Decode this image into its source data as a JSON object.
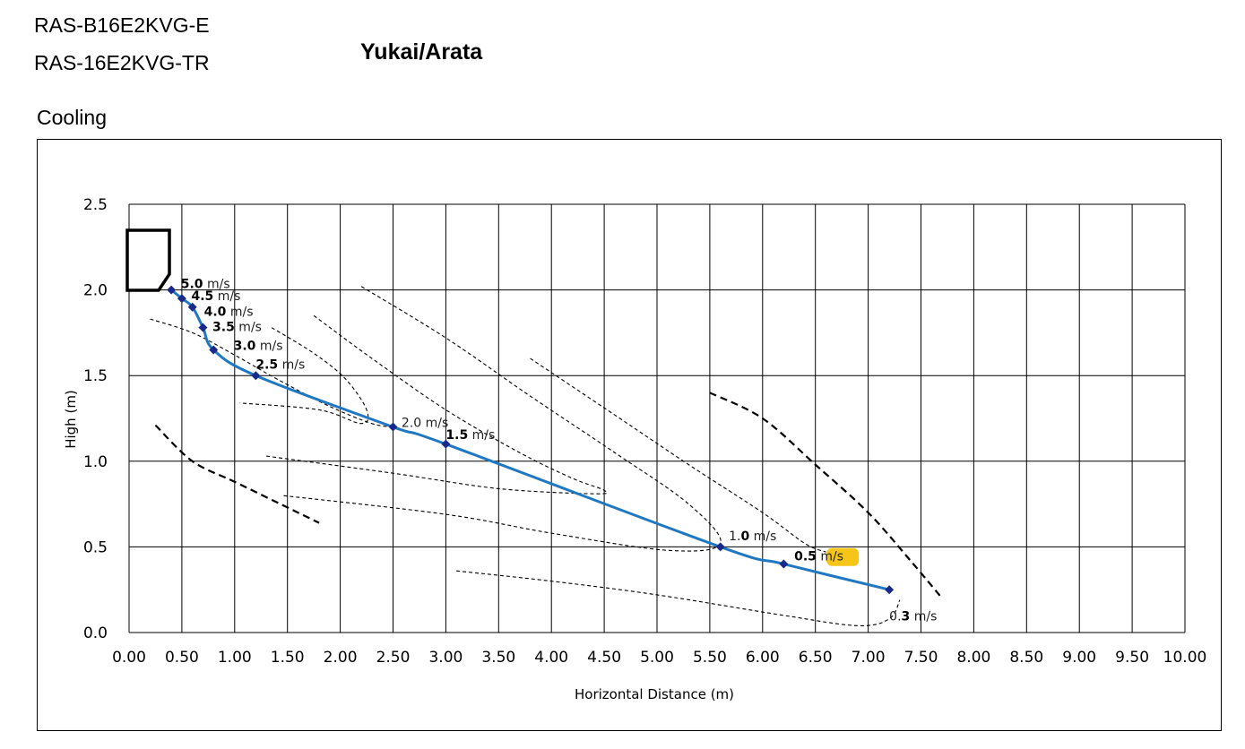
{
  "header": {
    "model_line_1": "RAS-B16E2KVG-E",
    "model_line_2": "RAS-16E2KVG-TR",
    "brand": "Yukai/Arata",
    "mode": "Cooling"
  },
  "chart_data": {
    "type": "line",
    "xlabel": "Horizontal Distance (m)",
    "ylabel": "High (m)",
    "xlim": [
      0,
      10
    ],
    "ylim": [
      0,
      2.5
    ],
    "x_ticks": [
      "0.00",
      "0.50",
      "1.00",
      "1.50",
      "2.00",
      "2.50",
      "3.00",
      "3.50",
      "4.00",
      "4.50",
      "5.00",
      "5.50",
      "6.00",
      "6.50",
      "7.00",
      "7.50",
      "8.00",
      "8.50",
      "9.00",
      "9.50",
      "10.00"
    ],
    "y_ticks": [
      "0.0",
      "0.5",
      "1.0",
      "1.5",
      "2.0",
      "2.5"
    ],
    "grid": true,
    "series_color": "#1f78c1",
    "marker_color": "#1a2a8a",
    "highlight_color": "#f5c518",
    "airflow_path": [
      {
        "x": 0.4,
        "y": 2.0
      },
      {
        "x": 0.5,
        "y": 1.95
      },
      {
        "x": 0.6,
        "y": 1.9
      },
      {
        "x": 0.7,
        "y": 1.78
      },
      {
        "x": 0.8,
        "y": 1.65
      },
      {
        "x": 1.2,
        "y": 1.5
      },
      {
        "x": 2.5,
        "y": 1.2
      },
      {
        "x": 3.0,
        "y": 1.1
      },
      {
        "x": 5.6,
        "y": 0.5
      },
      {
        "x": 6.2,
        "y": 0.4
      },
      {
        "x": 7.2,
        "y": 0.25
      }
    ],
    "velocity_labels": [
      {
        "num": "5.0",
        "unit": " m/s",
        "x": 0.49,
        "y": 2.01,
        "bold": true
      },
      {
        "num": "4.5",
        "unit": " m/s",
        "x": 0.59,
        "y": 1.94,
        "bold": true
      },
      {
        "num": "4.0",
        "unit": " m/s",
        "x": 0.71,
        "y": 1.85,
        "bold": true
      },
      {
        "num": "3.5",
        "unit": " m/s",
        "x": 0.79,
        "y": 1.76,
        "bold": true
      },
      {
        "num": "3.0",
        "unit": " m/s",
        "x": 0.99,
        "y": 1.65,
        "bold": true
      },
      {
        "num": "2.5",
        "unit": " m/s",
        "x": 1.2,
        "y": 1.54,
        "bold": true
      },
      {
        "num": "2.0",
        "unit": " m/s",
        "x": 2.58,
        "y": 1.2,
        "bold": false
      },
      {
        "num": "1.5",
        "unit": " m/s",
        "x": 3.0,
        "y": 1.13,
        "bold": true
      },
      {
        "num": "1.0",
        "unit": " m/s",
        "x": 5.68,
        "y": 0.54,
        "bold": true,
        "prefix": "1.",
        "boldpart": "0"
      },
      {
        "num": "0.5",
        "unit": " m/s",
        "x": 6.3,
        "y": 0.42,
        "bold": true,
        "highlight": true
      },
      {
        "num": "0.3",
        "unit": " m/s",
        "x": 7.2,
        "y": 0.07,
        "bold": true,
        "prefix": "0.",
        "boldpart": "3"
      }
    ],
    "velocity_contours": [
      {
        "heavy": false,
        "points": [
          [
            0.2,
            1.83
          ],
          [
            0.6,
            1.75
          ],
          [
            1.0,
            1.62
          ],
          [
            1.4,
            1.48
          ],
          [
            1.9,
            1.32
          ],
          [
            2.3,
            1.22
          ],
          [
            2.5,
            1.2
          ]
        ]
      },
      {
        "heavy": false,
        "points": [
          [
            1.35,
            1.78
          ],
          [
            1.75,
            1.63
          ],
          [
            2.05,
            1.48
          ],
          [
            2.25,
            1.3
          ],
          [
            2.2,
            1.22
          ],
          [
            1.8,
            1.3
          ],
          [
            1.05,
            1.34
          ]
        ]
      },
      {
        "heavy": false,
        "points": [
          [
            1.75,
            1.85
          ],
          [
            2.3,
            1.6
          ],
          [
            3.0,
            1.3
          ],
          [
            3.7,
            1.05
          ],
          [
            4.2,
            0.9
          ],
          [
            4.5,
            0.83
          ],
          [
            4.4,
            0.81
          ],
          [
            3.5,
            0.84
          ],
          [
            2.5,
            0.93
          ],
          [
            1.3,
            1.03
          ]
        ]
      },
      {
        "heavy": false,
        "points": [
          [
            2.2,
            2.02
          ],
          [
            3.0,
            1.72
          ],
          [
            3.8,
            1.38
          ],
          [
            4.6,
            1.05
          ],
          [
            5.3,
            0.75
          ],
          [
            5.6,
            0.52
          ],
          [
            5.1,
            0.48
          ],
          [
            4.0,
            0.58
          ],
          [
            3.0,
            0.69
          ],
          [
            1.45,
            0.8
          ]
        ]
      },
      {
        "heavy": false,
        "points": [
          [
            3.8,
            1.6
          ],
          [
            4.6,
            1.27
          ],
          [
            5.3,
            0.98
          ],
          [
            6.0,
            0.7
          ],
          [
            6.4,
            0.52
          ],
          [
            6.6,
            0.47
          ]
        ]
      },
      {
        "heavy": false,
        "points": [
          [
            3.1,
            0.36
          ],
          [
            4.0,
            0.3
          ],
          [
            5.0,
            0.22
          ],
          [
            6.2,
            0.1
          ],
          [
            6.9,
            0.04
          ],
          [
            7.2,
            0.08
          ],
          [
            7.3,
            0.19
          ]
        ]
      },
      {
        "heavy": true,
        "points": [
          [
            5.5,
            1.4
          ],
          [
            6.0,
            1.25
          ],
          [
            6.5,
            0.98
          ],
          [
            7.0,
            0.7
          ],
          [
            7.4,
            0.42
          ],
          [
            7.7,
            0.2
          ]
        ]
      },
      {
        "heavy": true,
        "points": [
          [
            0.25,
            1.21
          ],
          [
            0.6,
            1.0
          ],
          [
            1.0,
            0.88
          ],
          [
            1.5,
            0.73
          ],
          [
            1.8,
            0.64
          ]
        ]
      }
    ]
  }
}
